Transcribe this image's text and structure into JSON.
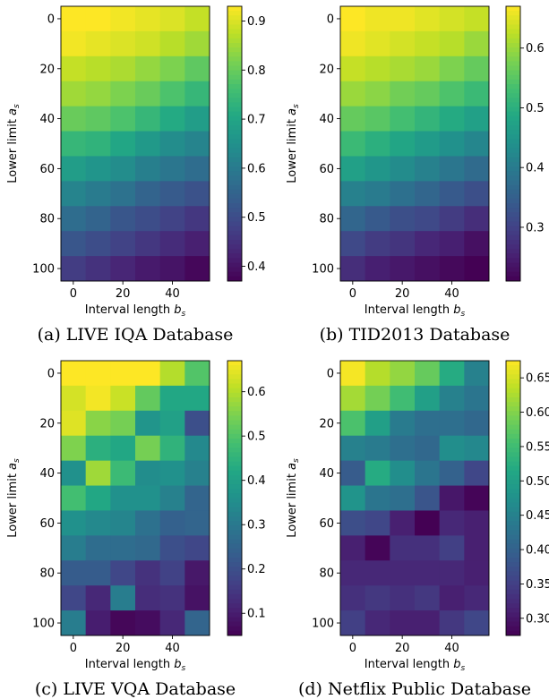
{
  "chart_data": [
    {
      "type": "heatmap",
      "caption": "(a) LIVE IQA Database",
      "xlabel": "Interval length b_s",
      "ylabel": "Lower limit a_s",
      "xticks": [
        0,
        20,
        40
      ],
      "yticks": [
        0,
        20,
        40,
        60,
        80,
        100
      ],
      "x": [
        0,
        10,
        20,
        30,
        40,
        50
      ],
      "y": [
        0,
        10,
        20,
        30,
        40,
        50,
        60,
        70,
        80,
        90,
        100
      ],
      "clim": [
        0.37,
        0.93
      ],
      "colorbar_ticks": [
        "0.4",
        "0.5",
        "0.6",
        "0.7",
        "0.8",
        "0.9"
      ],
      "colorbar_values": [
        0.4,
        0.5,
        0.6,
        0.7,
        0.8,
        0.9
      ],
      "values": [
        [
          0.93,
          0.93,
          0.92,
          0.91,
          0.9,
          0.88
        ],
        [
          0.92,
          0.91,
          0.9,
          0.89,
          0.87,
          0.85
        ],
        [
          0.88,
          0.87,
          0.86,
          0.84,
          0.82,
          0.79
        ],
        [
          0.85,
          0.84,
          0.82,
          0.8,
          0.77,
          0.74
        ],
        [
          0.8,
          0.79,
          0.77,
          0.74,
          0.71,
          0.68
        ],
        [
          0.74,
          0.73,
          0.7,
          0.67,
          0.64,
          0.62
        ],
        [
          0.68,
          0.66,
          0.64,
          0.61,
          0.59,
          0.57
        ],
        [
          0.62,
          0.6,
          0.58,
          0.55,
          0.53,
          0.51
        ],
        [
          0.57,
          0.55,
          0.52,
          0.5,
          0.48,
          0.46
        ],
        [
          0.52,
          0.5,
          0.48,
          0.46,
          0.44,
          0.42
        ],
        [
          0.47,
          0.45,
          0.43,
          0.41,
          0.4,
          0.38
        ]
      ]
    },
    {
      "type": "heatmap",
      "caption": "(b) TID2013 Database",
      "xlabel": "Interval length b_s",
      "ylabel": "Lower limit a_s",
      "xticks": [
        0,
        20,
        40
      ],
      "yticks": [
        0,
        20,
        40,
        60,
        80,
        100
      ],
      "x": [
        0,
        10,
        20,
        30,
        40,
        50
      ],
      "y": [
        0,
        10,
        20,
        30,
        40,
        50,
        60,
        70,
        80,
        90,
        100
      ],
      "clim": [
        0.21,
        0.67
      ],
      "colorbar_ticks": [
        "0.3",
        "0.4",
        "0.5",
        "0.6"
      ],
      "colorbar_values": [
        0.3,
        0.4,
        0.5,
        0.6
      ],
      "values": [
        [
          0.67,
          0.66,
          0.66,
          0.65,
          0.64,
          0.63
        ],
        [
          0.66,
          0.65,
          0.64,
          0.63,
          0.62,
          0.6
        ],
        [
          0.63,
          0.62,
          0.61,
          0.6,
          0.58,
          0.56
        ],
        [
          0.6,
          0.59,
          0.57,
          0.56,
          0.54,
          0.52
        ],
        [
          0.56,
          0.55,
          0.53,
          0.51,
          0.49,
          0.47
        ],
        [
          0.52,
          0.5,
          0.48,
          0.46,
          0.44,
          0.42
        ],
        [
          0.47,
          0.45,
          0.43,
          0.41,
          0.39,
          0.37
        ],
        [
          0.41,
          0.4,
          0.38,
          0.36,
          0.34,
          0.32
        ],
        [
          0.36,
          0.34,
          0.32,
          0.31,
          0.29,
          0.27
        ],
        [
          0.31,
          0.29,
          0.28,
          0.26,
          0.25,
          0.23
        ],
        [
          0.27,
          0.25,
          0.24,
          0.23,
          0.22,
          0.21
        ]
      ]
    },
    {
      "type": "heatmap",
      "caption": "(c) LIVE VQA Database",
      "xlabel": "Interval length b_s",
      "ylabel": "Lower limit a_s",
      "xticks": [
        0,
        20,
        40
      ],
      "yticks": [
        0,
        20,
        40,
        60,
        80,
        100
      ],
      "x": [
        0,
        10,
        20,
        30,
        40,
        50
      ],
      "y": [
        0,
        10,
        20,
        30,
        40,
        50,
        60,
        70,
        80,
        90,
        100
      ],
      "clim": [
        0.05,
        0.67
      ],
      "colorbar_ticks": [
        "0.1",
        "0.2",
        "0.3",
        "0.4",
        "0.5",
        "0.6"
      ],
      "colorbar_values": [
        0.1,
        0.2,
        0.3,
        0.4,
        0.5,
        0.6
      ],
      "values": [
        [
          0.67,
          0.67,
          0.67,
          0.67,
          0.6,
          0.5
        ],
        [
          0.63,
          0.66,
          0.62,
          0.52,
          0.42,
          0.42
        ],
        [
          0.64,
          0.56,
          0.54,
          0.37,
          0.4,
          0.2
        ],
        [
          0.55,
          0.44,
          0.42,
          0.54,
          0.45,
          0.34
        ],
        [
          0.36,
          0.58,
          0.47,
          0.35,
          0.36,
          0.32
        ],
        [
          0.48,
          0.42,
          0.36,
          0.36,
          0.32,
          0.25
        ],
        [
          0.36,
          0.34,
          0.33,
          0.28,
          0.24,
          0.25
        ],
        [
          0.31,
          0.27,
          0.27,
          0.26,
          0.2,
          0.18
        ],
        [
          0.23,
          0.23,
          0.18,
          0.14,
          0.17,
          0.09
        ],
        [
          0.18,
          0.12,
          0.31,
          0.13,
          0.14,
          0.08
        ],
        [
          0.31,
          0.1,
          0.06,
          0.07,
          0.12,
          0.25
        ]
      ]
    },
    {
      "type": "heatmap",
      "caption": "(d) Netflix Public Database",
      "xlabel": "Interval length b_s",
      "ylabel": "Lower limit a_s",
      "xticks": [
        0,
        20,
        40
      ],
      "yticks": [
        0,
        20,
        40,
        60,
        80,
        100
      ],
      "x": [
        0,
        10,
        20,
        30,
        40,
        50
      ],
      "y": [
        0,
        10,
        20,
        30,
        40,
        50,
        60,
        70,
        80,
        90,
        100
      ],
      "clim": [
        0.275,
        0.675
      ],
      "colorbar_ticks": [
        "0.30",
        "0.35",
        "0.40",
        "0.45",
        "0.50",
        "0.55",
        "0.60",
        "0.65"
      ],
      "colorbar_values": [
        0.3,
        0.35,
        0.4,
        0.45,
        0.5,
        0.55,
        0.6,
        0.65
      ],
      "values": [
        [
          0.67,
          0.63,
          0.61,
          0.58,
          0.52,
          0.45
        ],
        [
          0.62,
          0.59,
          0.55,
          0.5,
          0.45,
          0.43
        ],
        [
          0.56,
          0.5,
          0.44,
          0.42,
          0.42,
          0.41
        ],
        [
          0.45,
          0.44,
          0.42,
          0.41,
          0.47,
          0.46
        ],
        [
          0.39,
          0.52,
          0.47,
          0.43,
          0.4,
          0.36
        ],
        [
          0.48,
          0.43,
          0.42,
          0.38,
          0.3,
          0.28
        ],
        [
          0.37,
          0.36,
          0.31,
          0.27,
          0.32,
          0.31
        ],
        [
          0.31,
          0.28,
          0.33,
          0.33,
          0.35,
          0.31
        ],
        [
          0.32,
          0.32,
          0.32,
          0.32,
          0.32,
          0.31
        ],
        [
          0.33,
          0.34,
          0.33,
          0.34,
          0.31,
          0.32
        ],
        [
          0.35,
          0.32,
          0.31,
          0.31,
          0.34,
          0.36
        ]
      ]
    }
  ]
}
